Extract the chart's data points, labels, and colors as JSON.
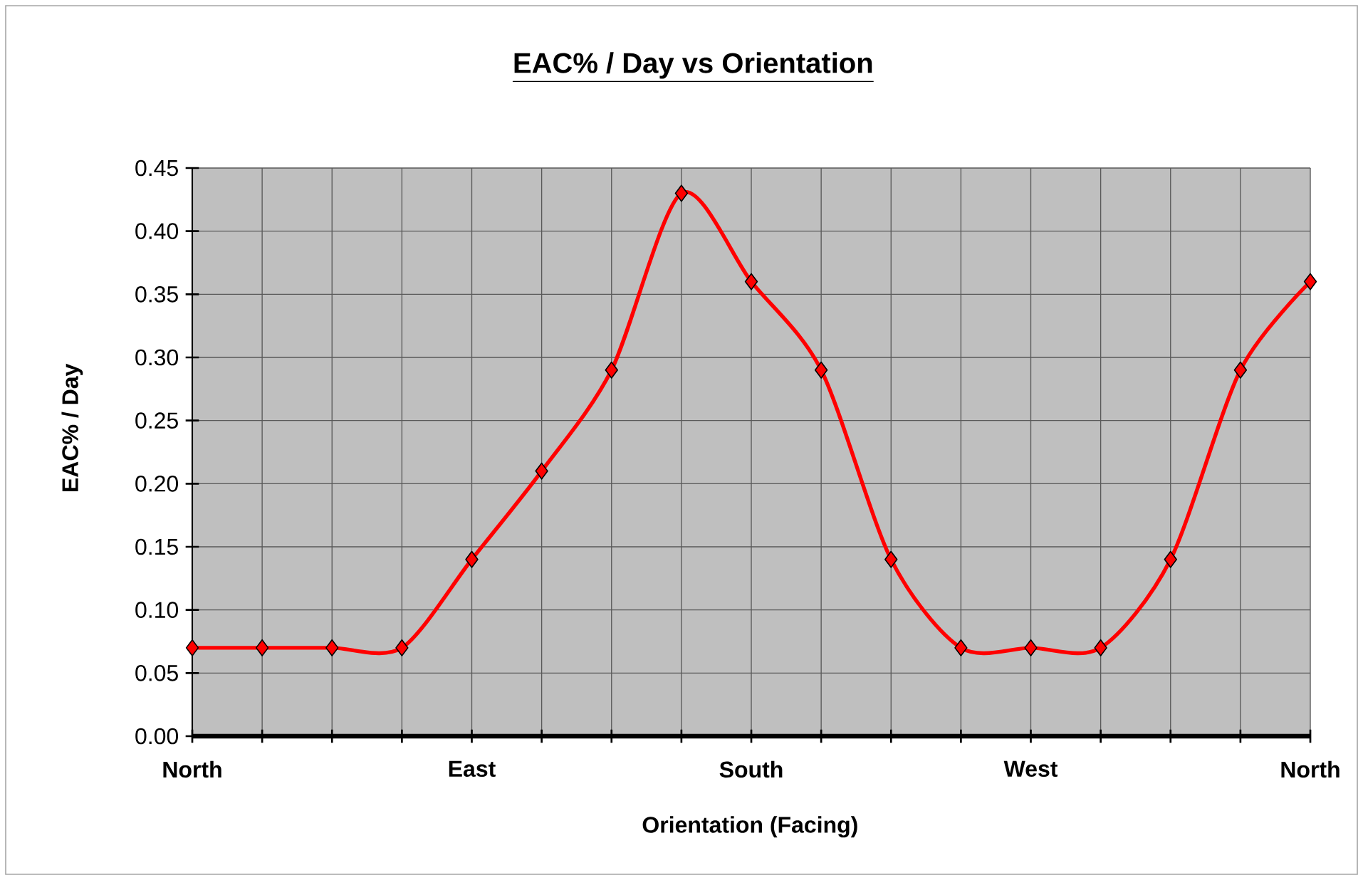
{
  "chart_data": {
    "type": "line",
    "title": "EAC% / Day vs Orientation",
    "xlabel": "Orientation (Facing)",
    "ylabel": "EAC% / Day",
    "categories": [
      "North",
      null,
      null,
      null,
      "East",
      null,
      null,
      null,
      "South",
      null,
      null,
      null,
      "West",
      null,
      null,
      null,
      "North"
    ],
    "series": [
      {
        "color": "#ff0000",
        "values": [
          0.07,
          0.07,
          0.07,
          0.07,
          0.14,
          0.21,
          0.29,
          0.43,
          0.36,
          0.29,
          0.14,
          0.07,
          0.07,
          0.07,
          0.14,
          0.29,
          0.36
        ]
      }
    ],
    "ylim": [
      0,
      0.45
    ],
    "yticks": [
      {
        "value": 0,
        "label": "0.00"
      },
      {
        "value": 0.05,
        "label": "0.05"
      },
      {
        "value": 0.1,
        "label": "0.10"
      },
      {
        "value": 0.15,
        "label": "0.15"
      },
      {
        "value": 0.2,
        "label": "0.20"
      },
      {
        "value": 0.25,
        "label": "0.25"
      },
      {
        "value": 0.3,
        "label": "0.30"
      },
      {
        "value": 0.35,
        "label": "0.35"
      },
      {
        "value": 0.4,
        "label": "0.40"
      },
      {
        "value": 0.45,
        "label": "0.45"
      }
    ],
    "grid": true,
    "marker": "diamond",
    "line_style": "solid"
  }
}
